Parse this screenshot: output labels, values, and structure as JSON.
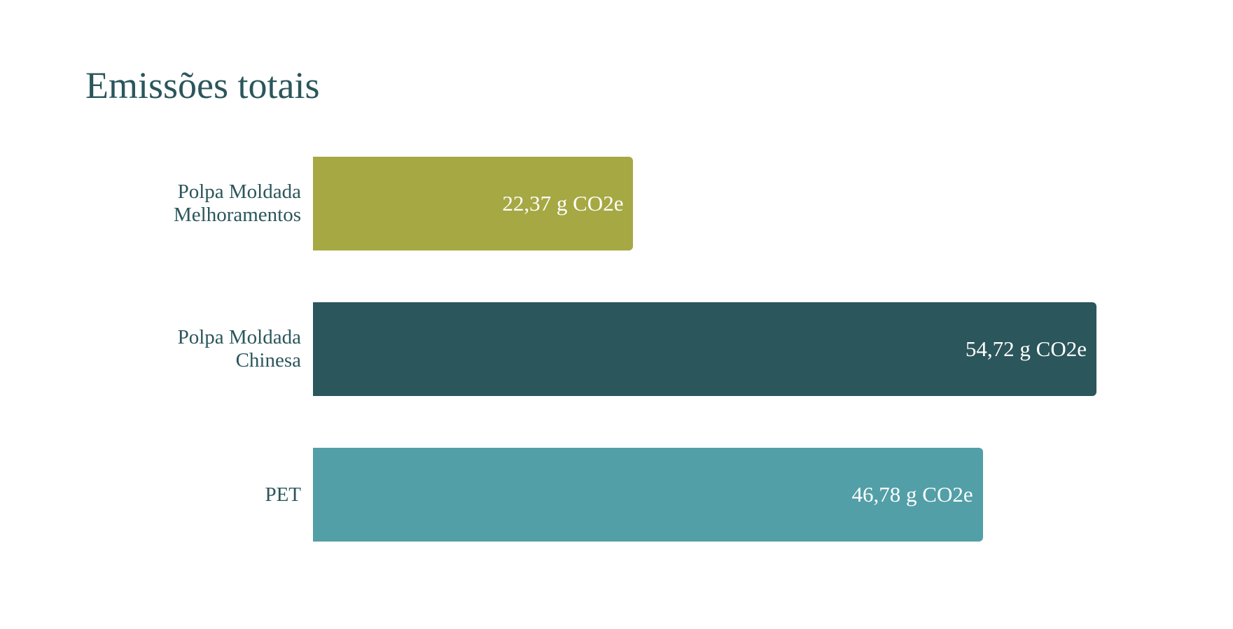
{
  "chart_data": {
    "type": "bar",
    "orientation": "horizontal",
    "title": "Emissões totais",
    "categories": [
      "Polpa Moldada Melhoramentos",
      "Polpa Moldada Chinesa",
      "PET"
    ],
    "values": [
      22.37,
      54.72,
      46.78
    ],
    "value_labels": [
      "22,37 g CO2e",
      "54,72 g CO2e",
      "46,78 g CO2e"
    ],
    "colors": [
      "#a6a843",
      "#2b565b",
      "#529fa7"
    ]
  }
}
